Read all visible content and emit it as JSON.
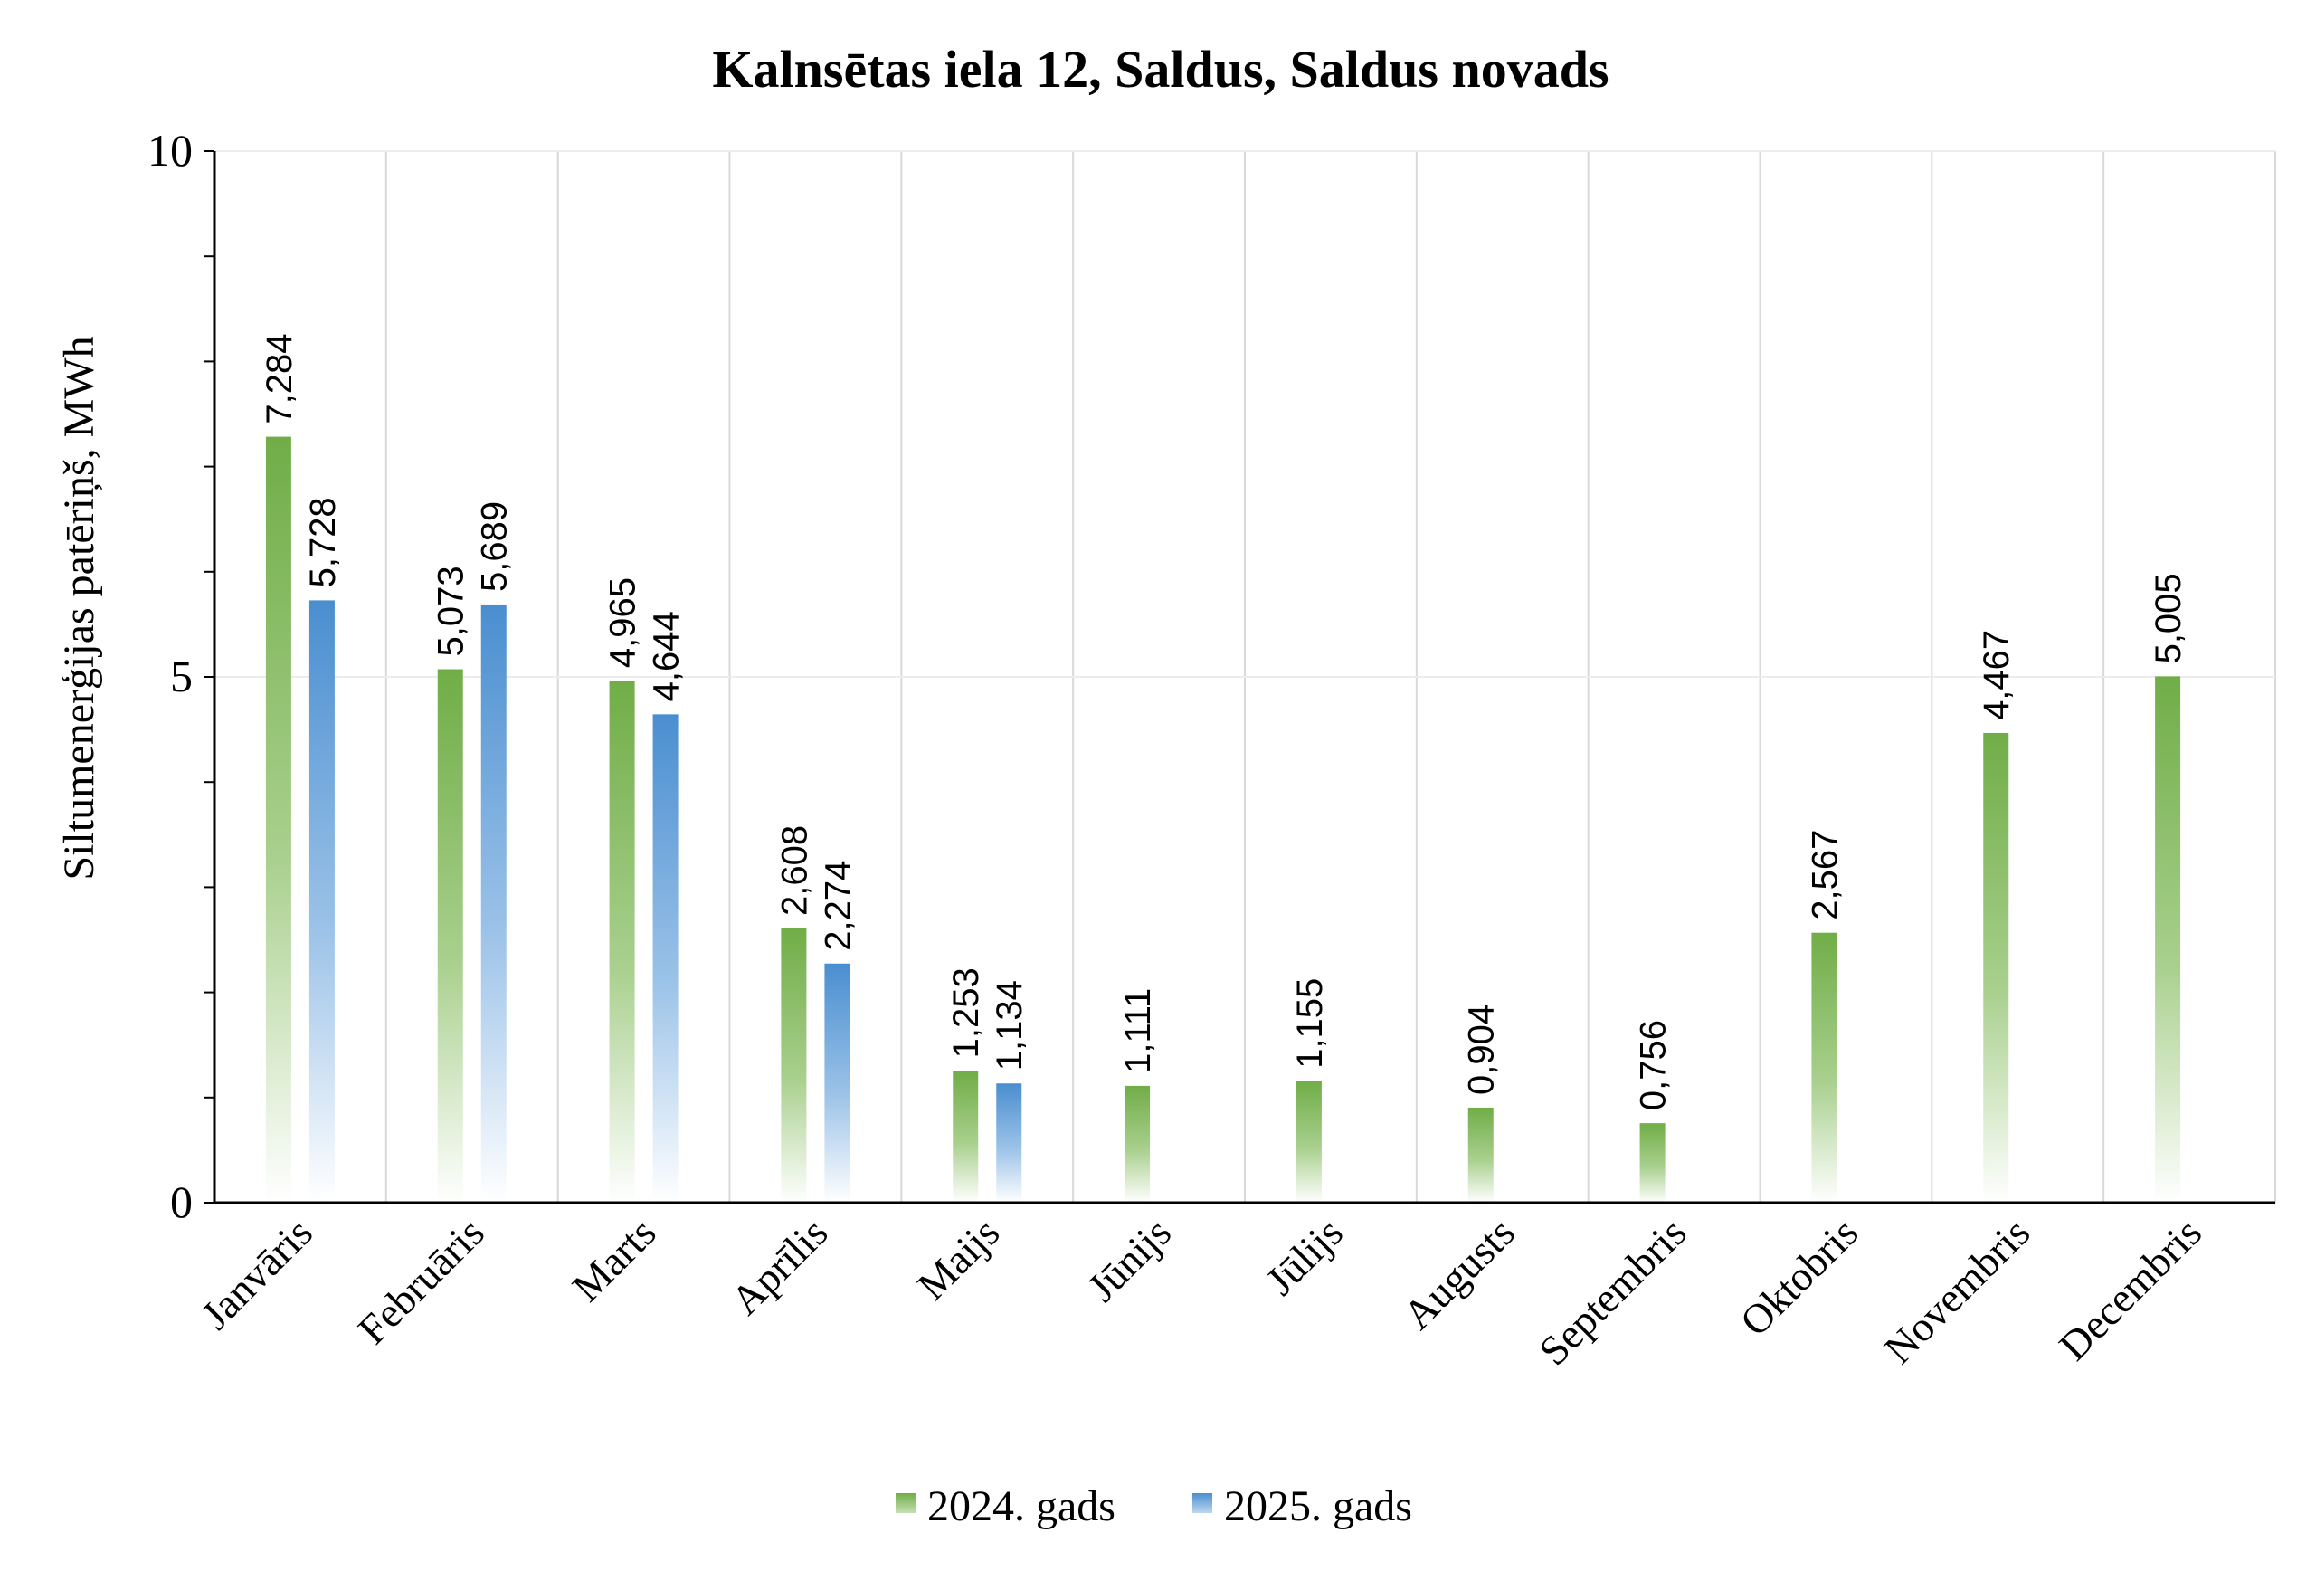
{
  "chart_data": {
    "type": "bar",
    "title": "Kalnsētas iela 12, Saldus, Saldus novads",
    "ylabel": "Siltumenerģijas patēriņš, MWh",
    "xlabel": "",
    "ylim": [
      0,
      10
    ],
    "yticks": [
      "0",
      "5",
      "10"
    ],
    "categories": [
      "Janvāris",
      "Februāris",
      "Marts",
      "Aprīlis",
      "Maijs",
      "Jūnijs",
      "Jūlijs",
      "Augusts",
      "Septembris",
      "Oktobris",
      "Novembris",
      "Decembris"
    ],
    "series": [
      {
        "name": "2024. gads",
        "color": "#70ad47",
        "values": [
          7.284,
          5.073,
          4.965,
          2.608,
          1.253,
          1.111,
          1.155,
          0.904,
          0.756,
          2.567,
          4.467,
          5.005
        ],
        "labels": [
          "7,284",
          "5,073",
          "4,965",
          "2,608",
          "1,253",
          "1,111",
          "1,155",
          "0,904",
          "0,756",
          "2,567",
          "4,467",
          "5,005"
        ]
      },
      {
        "name": "2025. gads",
        "color": "#5b9bd5",
        "values": [
          5.728,
          5.689,
          4.644,
          2.274,
          1.134,
          null,
          null,
          null,
          null,
          null,
          null,
          null
        ],
        "labels": [
          "5,728",
          "5,689",
          "4,644",
          "2,274",
          "1,134",
          null,
          null,
          null,
          null,
          null,
          null,
          null
        ]
      }
    ],
    "grid": true,
    "legend": "bottom"
  }
}
